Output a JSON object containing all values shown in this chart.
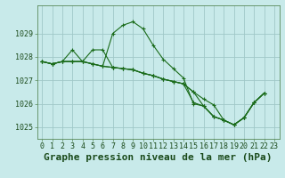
{
  "background_color": "#c8eaea",
  "grid_color": "#a0c8c8",
  "line_color": "#1a6b1a",
  "xlim": [
    -0.5,
    23.5
  ],
  "ylim": [
    1024.5,
    1030.2
  ],
  "yticks": [
    1025,
    1026,
    1027,
    1028,
    1029
  ],
  "xticks": [
    0,
    1,
    2,
    3,
    4,
    5,
    6,
    7,
    8,
    9,
    10,
    11,
    12,
    13,
    14,
    15,
    16,
    17,
    18,
    19,
    20,
    21,
    22,
    23
  ],
  "xlabel": "Graphe pression niveau de la mer (hPa)",
  "tick_fontsize": 6,
  "xlabel_fontsize": 8,
  "series": [
    [
      1027.8,
      1027.7,
      1027.8,
      1027.8,
      1027.8,
      1027.7,
      1027.6,
      1029.0,
      1029.35,
      1029.5,
      1029.2,
      1028.5,
      1027.9,
      1027.5,
      1027.1,
      1026.0,
      1025.9,
      1025.45,
      1025.3,
      1025.1,
      1025.4,
      1026.05,
      1026.45,
      null
    ],
    [
      1027.8,
      1027.7,
      1027.8,
      1028.3,
      1027.8,
      1027.7,
      1027.6,
      1027.55,
      1027.5,
      1027.45,
      1027.3,
      1027.2,
      1027.05,
      1026.95,
      1026.85,
      1026.05,
      1025.9,
      1025.45,
      1025.3,
      1025.1,
      1025.4,
      1026.05,
      1026.45,
      null
    ],
    [
      1027.8,
      1027.7,
      1027.8,
      1027.8,
      1027.8,
      1028.3,
      1028.3,
      1027.55,
      1027.5,
      1027.45,
      1027.3,
      1027.2,
      1027.05,
      1026.95,
      1026.85,
      1026.5,
      1025.9,
      1025.45,
      1025.3,
      1025.1,
      1025.4,
      1026.05,
      1026.45,
      null
    ],
    [
      1027.8,
      1027.7,
      1027.8,
      1027.8,
      1027.8,
      1027.7,
      1027.6,
      1027.55,
      1027.5,
      1027.45,
      1027.3,
      1027.2,
      1027.05,
      1026.95,
      1026.85,
      1026.5,
      1026.2,
      1025.95,
      1025.3,
      1025.1,
      1025.4,
      1026.05,
      1026.45,
      null
    ]
  ]
}
